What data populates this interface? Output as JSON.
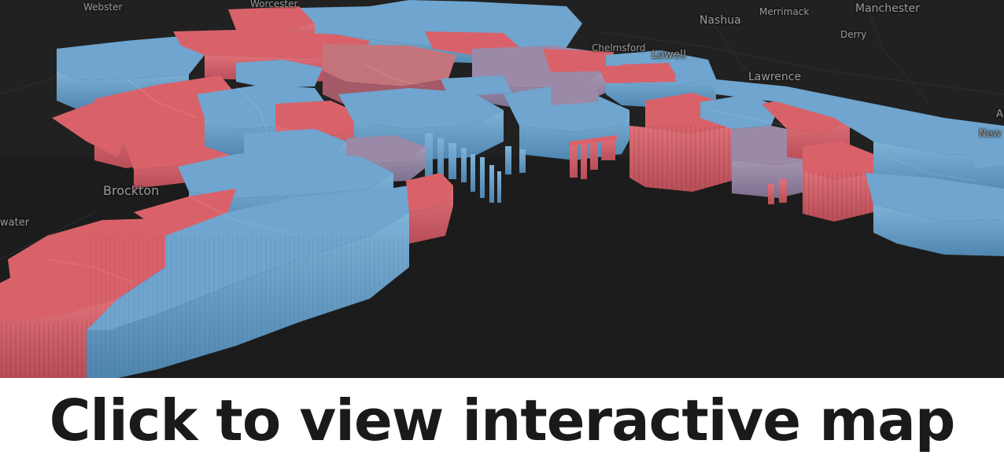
{
  "colors": {
    "background": "#1c1c1c",
    "democrat_blue": "#6fa5cf",
    "republican_red": "#d9626a",
    "mixed_purple": "#9a8aa8",
    "label_gray": "#9a9a9a",
    "cta_text": "#1a1a1a"
  },
  "map_labels": {
    "webster": "Webster",
    "worcester": "Worcester",
    "nashua": "Nashua",
    "merrimack": "Merrimack",
    "manchester": "Manchester",
    "derry": "Derry",
    "chelmsford": "Chelmsford",
    "lowell": "Lowell",
    "lawrence": "Lawrence",
    "brockton": "Brockton",
    "bridgewater_partial": "water",
    "newburyport_partial": "New",
    "right_edge_partial": "A"
  },
  "cta": {
    "label": "Click to view interactive map"
  }
}
